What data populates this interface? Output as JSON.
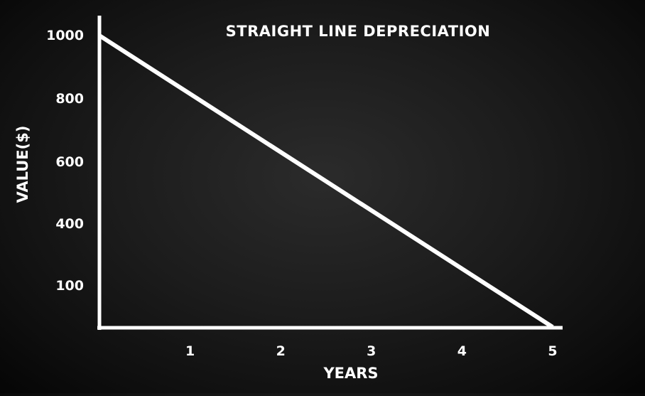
{
  "chart_data": {
    "type": "line",
    "title": "STRAIGHT LINE DEPRECIATION",
    "xlabel": "YEARS",
    "ylabel": "VALUE($)",
    "x_ticks": [
      "1",
      "2",
      "3",
      "4",
      "5"
    ],
    "y_ticks": [
      "1000",
      "800",
      "600",
      "400",
      "100"
    ],
    "xlim": [
      0,
      5
    ],
    "ylim": [
      0,
      1000
    ],
    "grid": false,
    "series": [
      {
        "x": [
          0,
          5
        ],
        "y": [
          1000,
          0
        ]
      }
    ],
    "colors": {
      "line": "#ffffff",
      "axis": "#ffffff",
      "text": "#ffffff"
    }
  }
}
